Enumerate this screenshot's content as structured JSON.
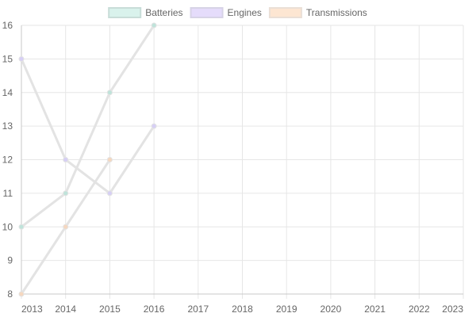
{
  "chart_data": {
    "type": "line",
    "title": "",
    "xlabel": "",
    "ylabel": "",
    "x_ticks": [
      "2013",
      "2014",
      "2015",
      "2016",
      "2017",
      "2018",
      "2019",
      "2020",
      "2021",
      "2022",
      "2023"
    ],
    "y_ticks": [
      "8",
      "9",
      "10",
      "11",
      "12",
      "13",
      "14",
      "15",
      "16"
    ],
    "xlim": [
      2013,
      2023
    ],
    "ylim": [
      8,
      16
    ],
    "grid": true,
    "legend_position": "top-center",
    "series": [
      {
        "name": "Batteries",
        "swatch_fill": "#d9f2ec",
        "swatch_border": "#c8ddd8",
        "point_color": "#bfe3da",
        "points": [
          {
            "x": 2013,
            "y": 10
          },
          {
            "x": 2014,
            "y": 11
          },
          {
            "x": 2015,
            "y": 14
          },
          {
            "x": 2016,
            "y": 16
          }
        ]
      },
      {
        "name": "Engines",
        "swatch_fill": "#e5dcfb",
        "swatch_border": "#d7d3e6",
        "point_color": "#d6cff5",
        "points": [
          {
            "x": 2013,
            "y": 15
          },
          {
            "x": 2014,
            "y": 12
          },
          {
            "x": 2015,
            "y": 11
          },
          {
            "x": 2016,
            "y": 13
          }
        ]
      },
      {
        "name": "Transmissions",
        "swatch_fill": "#fde6d2",
        "swatch_border": "#eadfd6",
        "point_color": "#f5d7bf",
        "points": [
          {
            "x": 2013,
            "y": 8
          },
          {
            "x": 2014,
            "y": 10
          },
          {
            "x": 2015,
            "y": 12
          }
        ]
      }
    ],
    "line_color": "#e3e3e3",
    "grid_color": "#e6e6e6",
    "axis_color": "#c8c8c8"
  }
}
